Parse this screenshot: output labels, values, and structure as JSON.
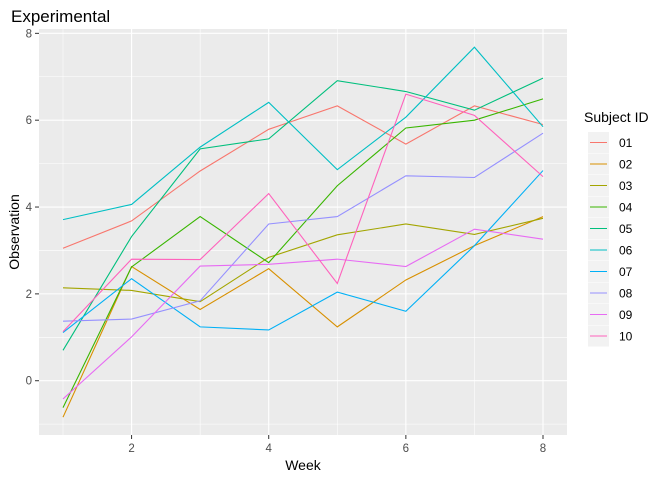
{
  "chart_data": {
    "type": "line",
    "title": "Experimental",
    "xlabel": "Week",
    "ylabel": "Observation",
    "xlim": [
      0.65,
      8.35
    ],
    "ylim": [
      -1.25,
      8.1
    ],
    "x_ticks": [
      2,
      4,
      6,
      8
    ],
    "y_ticks": [
      0,
      2,
      4,
      6,
      8
    ],
    "x_tick_labels": [
      "2",
      "4",
      "6",
      "8"
    ],
    "y_tick_labels": [
      "0",
      "2",
      "4",
      "6",
      "8"
    ],
    "grid": true,
    "legend_title": "Subject ID",
    "legend_position": "right",
    "x": [
      1,
      2,
      3,
      4,
      5,
      6,
      7,
      8
    ],
    "series": [
      {
        "name": "01",
        "color": "#F8766D",
        "values": [
          3.05,
          3.68,
          4.83,
          5.79,
          6.33,
          5.45,
          6.33,
          5.9
        ]
      },
      {
        "name": "02",
        "color": "#D89000",
        "values": [
          -0.84,
          2.63,
          1.64,
          2.58,
          1.24,
          2.32,
          3.11,
          3.78
        ]
      },
      {
        "name": "03",
        "color": "#A3A500",
        "values": [
          2.14,
          2.08,
          1.82,
          2.84,
          3.36,
          3.61,
          3.37,
          3.74
        ]
      },
      {
        "name": "04",
        "color": "#39B600",
        "values": [
          -0.62,
          2.62,
          3.78,
          2.72,
          4.49,
          5.82,
          6.0,
          6.49
        ]
      },
      {
        "name": "05",
        "color": "#00BF7D",
        "values": [
          0.7,
          3.32,
          5.34,
          5.57,
          6.91,
          6.66,
          6.23,
          6.97
        ]
      },
      {
        "name": "06",
        "color": "#00BFC4",
        "values": [
          3.71,
          4.06,
          5.38,
          6.41,
          4.86,
          6.07,
          7.68,
          5.85
        ]
      },
      {
        "name": "07",
        "color": "#00B0F6",
        "values": [
          1.11,
          2.35,
          1.24,
          1.17,
          2.04,
          1.6,
          3.11,
          4.84
        ]
      },
      {
        "name": "08",
        "color": "#9590FF",
        "values": [
          1.37,
          1.42,
          1.84,
          3.61,
          3.78,
          4.72,
          4.68,
          5.7
        ]
      },
      {
        "name": "09",
        "color": "#E76BF3",
        "values": [
          -0.42,
          1.01,
          2.64,
          2.68,
          2.8,
          2.63,
          3.49,
          3.26
        ]
      },
      {
        "name": "10",
        "color": "#FF62BC",
        "values": [
          1.13,
          2.8,
          2.79,
          4.31,
          2.24,
          6.6,
          6.11,
          4.7
        ]
      }
    ]
  }
}
